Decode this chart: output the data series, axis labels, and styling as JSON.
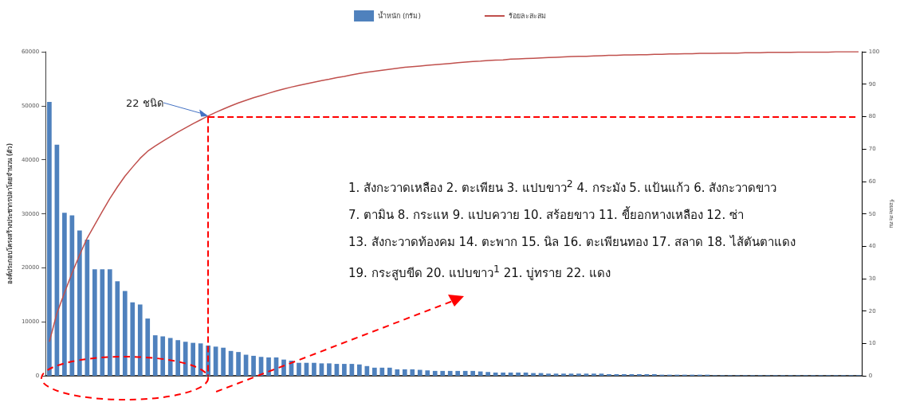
{
  "chart_data": {
    "type": "bar",
    "ylabel": "องค์ประกอบโครงสร้างประชากรปลาโดยจำนวน (ตัว)",
    "y2label": "ร้อยละสะสม",
    "categories": [
      null,
      null,
      null,
      null,
      null,
      null,
      null,
      null,
      null,
      null,
      null,
      null,
      null,
      null,
      null,
      null,
      null,
      null,
      null,
      null,
      null,
      null,
      null,
      null,
      null,
      null,
      null,
      null,
      null,
      null,
      null,
      null,
      null,
      null,
      null,
      null,
      null,
      null,
      null,
      null,
      null,
      null,
      null,
      null,
      null,
      null,
      null,
      null,
      null,
      null,
      null,
      null,
      null,
      null,
      null,
      null,
      null,
      null,
      null,
      null,
      null,
      null,
      null,
      null,
      null,
      null,
      null,
      null,
      null,
      null,
      null,
      null,
      null,
      null,
      null,
      null,
      null,
      null,
      null,
      null,
      null,
      null,
      null,
      null,
      null,
      null,
      null,
      null,
      null,
      null,
      null,
      null,
      null,
      null,
      null,
      null,
      null,
      null,
      null,
      null,
      null,
      null,
      null,
      null,
      null,
      null,
      null,
      null
    ],
    "series": [
      {
        "name": "น้ำหนัก (กรัม)",
        "color": "#4f81bd",
        "values": [
          50700,
          42800,
          30200,
          29700,
          26900,
          25200,
          19700,
          19700,
          19700,
          17500,
          15700,
          13600,
          13200,
          10600,
          7500,
          7300,
          7000,
          6600,
          6300,
          6100,
          6000,
          5600,
          5400,
          5200,
          4600,
          4400,
          3900,
          3700,
          3500,
          3400,
          3400,
          3000,
          2800,
          2400,
          2400,
          2400,
          2300,
          2300,
          2200,
          2200,
          2200,
          2100,
          1800,
          1500,
          1500,
          1500,
          1200,
          1200,
          1200,
          1100,
          1000,
          900,
          900,
          900,
          900,
          900,
          900,
          800,
          700,
          600,
          600,
          600,
          600,
          600,
          500,
          500,
          400,
          400,
          400,
          400,
          400,
          400,
          400,
          400,
          300,
          300,
          300,
          300,
          300,
          300,
          300,
          200,
          200,
          200,
          200,
          200,
          200,
          200,
          100,
          100,
          100,
          100,
          100,
          100,
          100,
          100,
          100,
          100,
          100,
          100,
          100,
          100,
          100,
          100,
          100,
          100,
          100,
          100
        ]
      },
      {
        "name": "ร้อยละสะสม",
        "type": "line",
        "axis": "y2",
        "color": "#c0504d",
        "values": [
          10.5,
          19.3,
          25.6,
          31.7,
          37.3,
          42.5,
          46.6,
          50.7,
          54.7,
          58.3,
          61.6,
          64.4,
          67.1,
          69.3,
          70.9,
          72.4,
          73.8,
          75.2,
          76.5,
          77.8,
          79.0,
          80.2,
          81.3,
          82.3,
          83.3,
          84.2,
          85.0,
          85.8,
          86.5,
          87.2,
          87.9,
          88.5,
          89.1,
          89.6,
          90.1,
          90.6,
          91.1,
          91.5,
          92.0,
          92.4,
          92.9,
          93.3,
          93.7,
          94.0,
          94.3,
          94.6,
          94.9,
          95.2,
          95.4,
          95.6,
          95.8,
          96.0,
          96.2,
          96.4,
          96.6,
          96.8,
          97.0,
          97.1,
          97.3,
          97.4,
          97.5,
          97.7,
          97.8,
          97.9,
          98.0,
          98.1,
          98.2,
          98.3,
          98.4,
          98.5,
          98.6,
          98.6,
          98.7,
          98.8,
          98.9,
          98.9,
          99.0,
          99.0,
          99.1,
          99.1,
          99.2,
          99.2,
          99.3,
          99.3,
          99.4,
          99.4,
          99.5,
          99.5,
          99.5,
          99.6,
          99.6,
          99.6,
          99.7,
          99.7,
          99.7,
          99.8,
          99.8,
          99.8,
          99.8,
          99.9,
          99.9,
          99.9,
          99.9,
          99.9,
          100,
          100,
          100,
          100
        ]
      }
    ],
    "ylim": [
      0,
      60000
    ],
    "yticks": [
      0,
      10000,
      20000,
      30000,
      40000,
      50000,
      60000
    ],
    "y2lim": [
      0,
      100
    ],
    "y2ticks": [
      0,
      10,
      20,
      30,
      40,
      50,
      60,
      70,
      80,
      90,
      100
    ],
    "ref_lines": [
      {
        "axis": "y2",
        "value": 80,
        "color": "#ff0000",
        "line_style": "dashed"
      }
    ],
    "annotations": [
      "22 ชนิด",
      "1. สังกะวาดเหลือง 2. ตะเพียน 3. แปบขาว$^{2}$ 4. กระมัง 5. แป้นแก้ว 6. สังกะวาดขาว",
      "7. ตามิน 8. กระแห 9. แปบควาย 10. สร้อยขาว 11. ขี้ยอกหางเหลือง 12. ซ่า",
      "13. สังกะวาดท้องคม 14. ตะพาก 15. นิล 16. ตะเพียนทอง 17. สลาด 18. ไส้ตันตาแดง",
      "19. กระสูบขีด 20. แปบขาว$^{1}$ 21. บู่ทราย 22. แดง"
    ],
    "legend": "top",
    "grid": false,
    "marker": "none"
  }
}
